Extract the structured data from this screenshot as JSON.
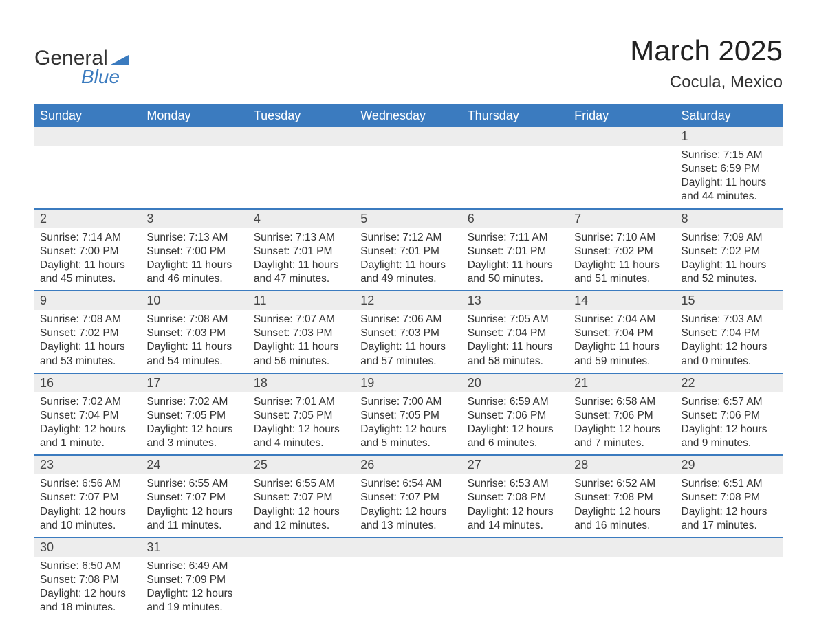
{
  "brand": {
    "general": "General",
    "blue": "Blue",
    "accent": "#3b7bbf"
  },
  "title": "March 2025",
  "location": "Cocula, Mexico",
  "colors": {
    "header_bg": "#3b7bbf",
    "header_text": "#ffffff",
    "daynum_bg": "#ededed",
    "row_divider": "#3b7bbf",
    "text": "#333333",
    "background": "#ffffff"
  },
  "typography": {
    "month_title_fontsize": 42,
    "location_fontsize": 24,
    "header_fontsize": 18,
    "daynum_fontsize": 18,
    "body_fontsize": 15.5
  },
  "weekdays": [
    "Sunday",
    "Monday",
    "Tuesday",
    "Wednesday",
    "Thursday",
    "Friday",
    "Saturday"
  ],
  "weeks": [
    [
      null,
      null,
      null,
      null,
      null,
      null,
      {
        "n": "1",
        "sunrise": "Sunrise: 7:15 AM",
        "sunset": "Sunset: 6:59 PM",
        "daylight": "Daylight: 11 hours and 44 minutes."
      }
    ],
    [
      {
        "n": "2",
        "sunrise": "Sunrise: 7:14 AM",
        "sunset": "Sunset: 7:00 PM",
        "daylight": "Daylight: 11 hours and 45 minutes."
      },
      {
        "n": "3",
        "sunrise": "Sunrise: 7:13 AM",
        "sunset": "Sunset: 7:00 PM",
        "daylight": "Daylight: 11 hours and 46 minutes."
      },
      {
        "n": "4",
        "sunrise": "Sunrise: 7:13 AM",
        "sunset": "Sunset: 7:01 PM",
        "daylight": "Daylight: 11 hours and 47 minutes."
      },
      {
        "n": "5",
        "sunrise": "Sunrise: 7:12 AM",
        "sunset": "Sunset: 7:01 PM",
        "daylight": "Daylight: 11 hours and 49 minutes."
      },
      {
        "n": "6",
        "sunrise": "Sunrise: 7:11 AM",
        "sunset": "Sunset: 7:01 PM",
        "daylight": "Daylight: 11 hours and 50 minutes."
      },
      {
        "n": "7",
        "sunrise": "Sunrise: 7:10 AM",
        "sunset": "Sunset: 7:02 PM",
        "daylight": "Daylight: 11 hours and 51 minutes."
      },
      {
        "n": "8",
        "sunrise": "Sunrise: 7:09 AM",
        "sunset": "Sunset: 7:02 PM",
        "daylight": "Daylight: 11 hours and 52 minutes."
      }
    ],
    [
      {
        "n": "9",
        "sunrise": "Sunrise: 7:08 AM",
        "sunset": "Sunset: 7:02 PM",
        "daylight": "Daylight: 11 hours and 53 minutes."
      },
      {
        "n": "10",
        "sunrise": "Sunrise: 7:08 AM",
        "sunset": "Sunset: 7:03 PM",
        "daylight": "Daylight: 11 hours and 54 minutes."
      },
      {
        "n": "11",
        "sunrise": "Sunrise: 7:07 AM",
        "sunset": "Sunset: 7:03 PM",
        "daylight": "Daylight: 11 hours and 56 minutes."
      },
      {
        "n": "12",
        "sunrise": "Sunrise: 7:06 AM",
        "sunset": "Sunset: 7:03 PM",
        "daylight": "Daylight: 11 hours and 57 minutes."
      },
      {
        "n": "13",
        "sunrise": "Sunrise: 7:05 AM",
        "sunset": "Sunset: 7:04 PM",
        "daylight": "Daylight: 11 hours and 58 minutes."
      },
      {
        "n": "14",
        "sunrise": "Sunrise: 7:04 AM",
        "sunset": "Sunset: 7:04 PM",
        "daylight": "Daylight: 11 hours and 59 minutes."
      },
      {
        "n": "15",
        "sunrise": "Sunrise: 7:03 AM",
        "sunset": "Sunset: 7:04 PM",
        "daylight": "Daylight: 12 hours and 0 minutes."
      }
    ],
    [
      {
        "n": "16",
        "sunrise": "Sunrise: 7:02 AM",
        "sunset": "Sunset: 7:04 PM",
        "daylight": "Daylight: 12 hours and 1 minute."
      },
      {
        "n": "17",
        "sunrise": "Sunrise: 7:02 AM",
        "sunset": "Sunset: 7:05 PM",
        "daylight": "Daylight: 12 hours and 3 minutes."
      },
      {
        "n": "18",
        "sunrise": "Sunrise: 7:01 AM",
        "sunset": "Sunset: 7:05 PM",
        "daylight": "Daylight: 12 hours and 4 minutes."
      },
      {
        "n": "19",
        "sunrise": "Sunrise: 7:00 AM",
        "sunset": "Sunset: 7:05 PM",
        "daylight": "Daylight: 12 hours and 5 minutes."
      },
      {
        "n": "20",
        "sunrise": "Sunrise: 6:59 AM",
        "sunset": "Sunset: 7:06 PM",
        "daylight": "Daylight: 12 hours and 6 minutes."
      },
      {
        "n": "21",
        "sunrise": "Sunrise: 6:58 AM",
        "sunset": "Sunset: 7:06 PM",
        "daylight": "Daylight: 12 hours and 7 minutes."
      },
      {
        "n": "22",
        "sunrise": "Sunrise: 6:57 AM",
        "sunset": "Sunset: 7:06 PM",
        "daylight": "Daylight: 12 hours and 9 minutes."
      }
    ],
    [
      {
        "n": "23",
        "sunrise": "Sunrise: 6:56 AM",
        "sunset": "Sunset: 7:07 PM",
        "daylight": "Daylight: 12 hours and 10 minutes."
      },
      {
        "n": "24",
        "sunrise": "Sunrise: 6:55 AM",
        "sunset": "Sunset: 7:07 PM",
        "daylight": "Daylight: 12 hours and 11 minutes."
      },
      {
        "n": "25",
        "sunrise": "Sunrise: 6:55 AM",
        "sunset": "Sunset: 7:07 PM",
        "daylight": "Daylight: 12 hours and 12 minutes."
      },
      {
        "n": "26",
        "sunrise": "Sunrise: 6:54 AM",
        "sunset": "Sunset: 7:07 PM",
        "daylight": "Daylight: 12 hours and 13 minutes."
      },
      {
        "n": "27",
        "sunrise": "Sunrise: 6:53 AM",
        "sunset": "Sunset: 7:08 PM",
        "daylight": "Daylight: 12 hours and 14 minutes."
      },
      {
        "n": "28",
        "sunrise": "Sunrise: 6:52 AM",
        "sunset": "Sunset: 7:08 PM",
        "daylight": "Daylight: 12 hours and 16 minutes."
      },
      {
        "n": "29",
        "sunrise": "Sunrise: 6:51 AM",
        "sunset": "Sunset: 7:08 PM",
        "daylight": "Daylight: 12 hours and 17 minutes."
      }
    ],
    [
      {
        "n": "30",
        "sunrise": "Sunrise: 6:50 AM",
        "sunset": "Sunset: 7:08 PM",
        "daylight": "Daylight: 12 hours and 18 minutes."
      },
      {
        "n": "31",
        "sunrise": "Sunrise: 6:49 AM",
        "sunset": "Sunset: 7:09 PM",
        "daylight": "Daylight: 12 hours and 19 minutes."
      },
      null,
      null,
      null,
      null,
      null
    ]
  ]
}
